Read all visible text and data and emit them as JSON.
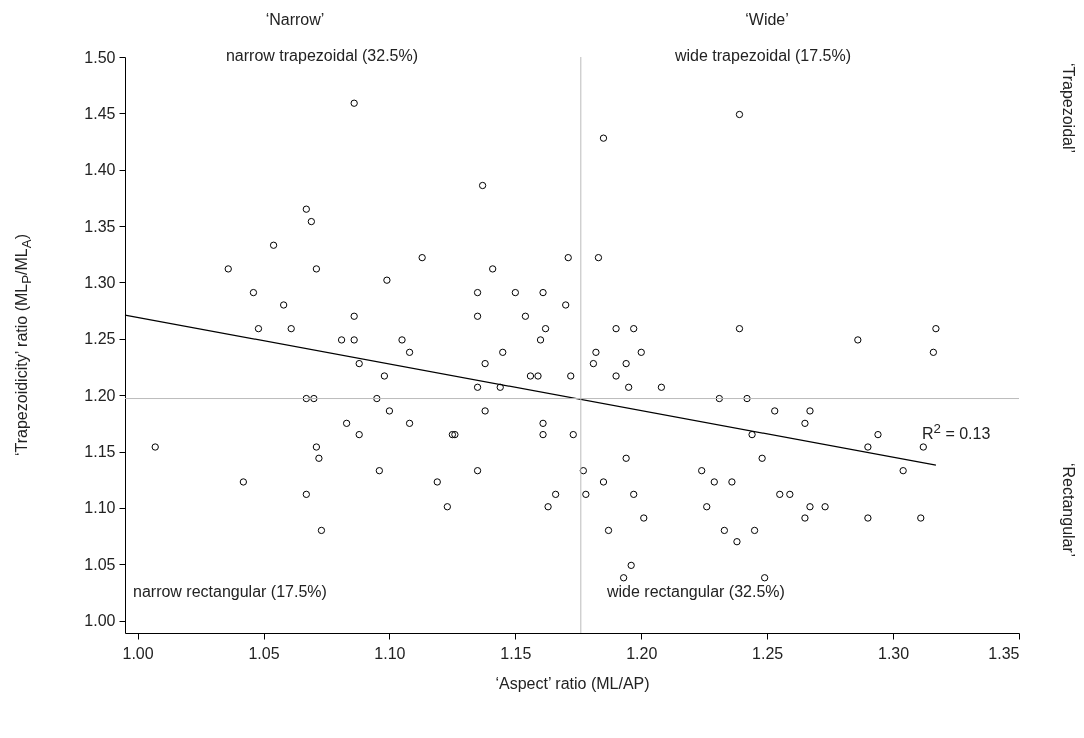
{
  "chart_data": {
    "type": "scatter",
    "xlabel": "‘Aspect’ ratio (ML/AP)",
    "ylabel": "‘Trapezoidicity’ ratio (ML$_{P}$/ML$_{A}$)",
    "annotations": [
      "‘Narrow’",
      "‘Wide’",
      "narrow trapezoidal (32.5%)",
      "wide trapezoidal (17.5%)",
      "narrow rectangular (17.5%)",
      "wide rectangular (32.5%)",
      "R$^{2}$ = 0.13",
      "‘Trapezoidal’",
      "‘Rectangular’"
    ],
    "xlim": [
      0.995,
      1.35
    ],
    "xticks": [
      {
        "value": 1,
        "label": "1.00"
      },
      {
        "value": 1.05,
        "label": "1.05"
      },
      {
        "value": 1.1,
        "label": "1.10"
      },
      {
        "value": 1.15,
        "label": "1.15"
      },
      {
        "value": 1.2,
        "label": "1.20"
      },
      {
        "value": 1.25,
        "label": "1.25"
      },
      {
        "value": 1.3,
        "label": "1.30"
      },
      {
        "value": 1.35,
        "label": "1.35"
      }
    ],
    "ylim": [
      0.989,
      1.5
    ],
    "yticks": [
      {
        "value": 1,
        "label": "1.00"
      },
      {
        "value": 1.05,
        "label": "1.05"
      },
      {
        "value": 1.1,
        "label": "1.10"
      },
      {
        "value": 1.15,
        "label": "1.15"
      },
      {
        "value": 1.2,
        "label": "1.20"
      },
      {
        "value": 1.25,
        "label": "1.25"
      },
      {
        "value": 1.3,
        "label": "1.30"
      },
      {
        "value": 1.35,
        "label": "1.35"
      },
      {
        "value": 1.4,
        "label": "1.40"
      },
      {
        "value": 1.45,
        "label": "1.45"
      },
      {
        "value": 1.5,
        "label": "1.50"
      }
    ],
    "ref_lines": [
      {
        "axis": "x",
        "value": 1.176,
        "color": "#bbbbbb"
      },
      {
        "axis": "y",
        "value": 1.197,
        "color": "#bbbbbb"
      }
    ],
    "series": [
      {
        "marker": "circle",
        "color": "#000000",
        "x": [
          1.086,
          1.067,
          1.069,
          1.054,
          1.036,
          1.071,
          1.113,
          1.099,
          1.046,
          1.058,
          1.086,
          1.048,
          1.061,
          1.081,
          1.086,
          1.105,
          1.108,
          1.137,
          1.185,
          1.171,
          1.183,
          1.141,
          1.135,
          1.15,
          1.161,
          1.17,
          1.135,
          1.154,
          1.162,
          1.19,
          1.197,
          1.16,
          1.145,
          1.182,
          1.2,
          1.239,
          1.239,
          1.286,
          1.317,
          1.316,
          1.088,
          1.098,
          1.067,
          1.07,
          1.095,
          1.1,
          1.083,
          1.108,
          1.088,
          1.007,
          1.071,
          1.072,
          1.096,
          1.042,
          1.067,
          1.073,
          1.138,
          1.181,
          1.194,
          1.156,
          1.159,
          1.172,
          1.19,
          1.135,
          1.144,
          1.195,
          1.208,
          1.231,
          1.138,
          1.161,
          1.161,
          1.125,
          1.126,
          1.173,
          1.194,
          1.135,
          1.177,
          1.224,
          1.119,
          1.185,
          1.229,
          1.166,
          1.178,
          1.197,
          1.123,
          1.163,
          1.226,
          1.201,
          1.187,
          1.196,
          1.193,
          1.242,
          1.253,
          1.267,
          1.265,
          1.244,
          1.294,
          1.29,
          1.312,
          1.248,
          1.304,
          1.236,
          1.255,
          1.259,
          1.267,
          1.273,
          1.265,
          1.29,
          1.311,
          1.233,
          1.245,
          1.238,
          1.249
        ],
        "values": [
          1.459,
          1.365,
          1.354,
          1.333,
          1.312,
          1.312,
          1.322,
          1.302,
          1.291,
          1.28,
          1.27,
          1.259,
          1.259,
          1.249,
          1.249,
          1.249,
          1.238,
          1.386,
          1.428,
          1.322,
          1.322,
          1.312,
          1.291,
          1.291,
          1.291,
          1.28,
          1.27,
          1.27,
          1.259,
          1.259,
          1.259,
          1.249,
          1.238,
          1.238,
          1.238,
          1.449,
          1.259,
          1.249,
          1.259,
          1.238,
          1.228,
          1.217,
          1.197,
          1.197,
          1.197,
          1.186,
          1.175,
          1.175,
          1.165,
          1.154,
          1.154,
          1.144,
          1.133,
          1.123,
          1.112,
          1.08,
          1.228,
          1.228,
          1.228,
          1.217,
          1.217,
          1.217,
          1.217,
          1.207,
          1.207,
          1.207,
          1.207,
          1.197,
          1.186,
          1.175,
          1.165,
          1.165,
          1.165,
          1.165,
          1.144,
          1.133,
          1.133,
          1.133,
          1.123,
          1.123,
          1.123,
          1.112,
          1.112,
          1.112,
          1.101,
          1.101,
          1.101,
          1.091,
          1.08,
          1.049,
          1.038,
          1.197,
          1.186,
          1.186,
          1.175,
          1.165,
          1.165,
          1.154,
          1.154,
          1.144,
          1.133,
          1.123,
          1.112,
          1.112,
          1.101,
          1.101,
          1.091,
          1.091,
          1.091,
          1.08,
          1.08,
          1.07,
          1.038
        ]
      },
      {
        "type": "line",
        "color": "#000000",
        "x": [
          0.995,
          1.317
        ],
        "values": [
          1.271,
          1.138
        ]
      }
    ]
  }
}
